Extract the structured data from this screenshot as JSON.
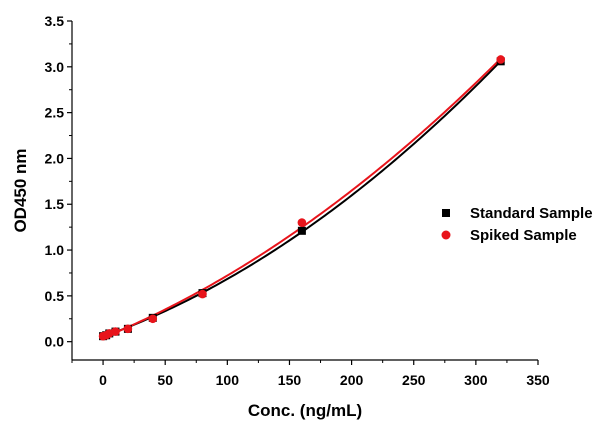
{
  "chart_data": {
    "type": "scatter",
    "xlabel": "Conc. (ng/mL)",
    "ylabel": "OD450 nm",
    "xlim": [
      -25,
      350
    ],
    "ylim": [
      -0.2,
      3.5
    ],
    "x_ticks": [
      0,
      50,
      100,
      150,
      200,
      250,
      300,
      350
    ],
    "y_ticks": [
      0.0,
      0.5,
      1.0,
      1.5,
      2.0,
      2.5,
      3.0,
      3.5
    ],
    "x_tick_labels": [
      "0",
      "50",
      "100",
      "150",
      "200",
      "250",
      "300",
      "350"
    ],
    "y_tick_labels": [
      "0.0",
      "0.5",
      "1.0",
      "1.5",
      "2.0",
      "2.5",
      "3.0",
      "3.5"
    ],
    "grid": false,
    "legend_position": "right",
    "series": [
      {
        "name": "Standard Sample",
        "marker": "square",
        "color": "#000000",
        "x": [
          0,
          2.5,
          5,
          10,
          20,
          40,
          80,
          160,
          320
        ],
        "y": [
          0.06,
          0.07,
          0.09,
          0.11,
          0.14,
          0.26,
          0.53,
          1.21,
          3.06
        ]
      },
      {
        "name": "Spiked Sample",
        "marker": "circle",
        "color": "#e8141b",
        "x": [
          0,
          2.5,
          5,
          10,
          20,
          40,
          80,
          160,
          320
        ],
        "y": [
          0.06,
          0.07,
          0.09,
          0.11,
          0.14,
          0.25,
          0.52,
          1.3,
          3.08
        ]
      }
    ]
  }
}
